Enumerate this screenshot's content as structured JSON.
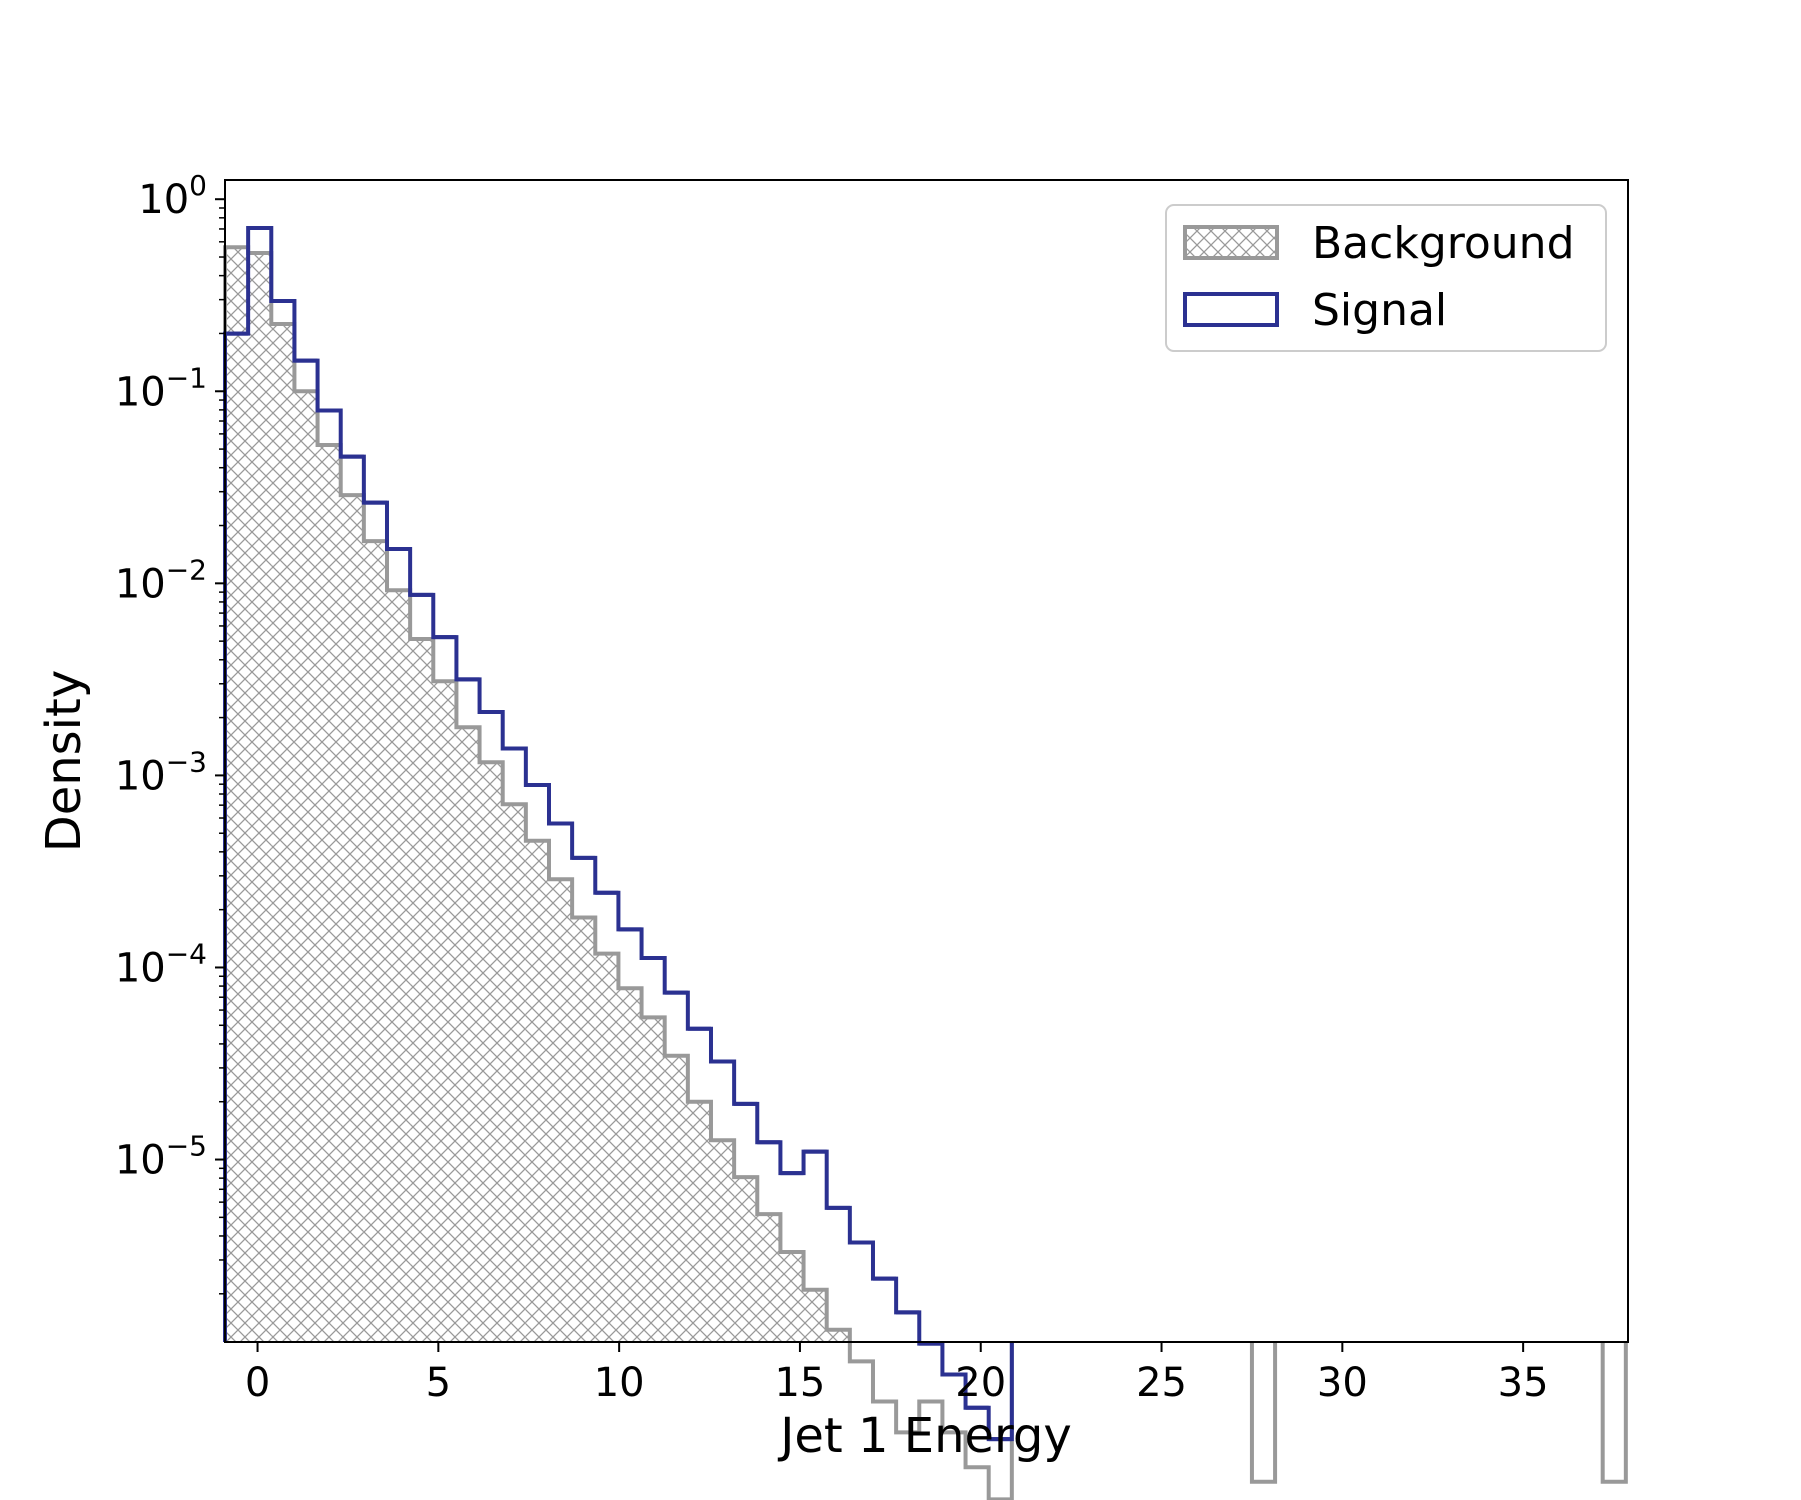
{
  "chart_data": {
    "type": "histogram",
    "xlabel": "Jet 1 Energy",
    "ylabel": "Density",
    "xlim": [
      -0.9,
      37.9
    ],
    "ylim_log10": [
      -5.95,
      0.1
    ],
    "y_scale": "log",
    "bin_width": 0.64,
    "x_ticks": [
      0,
      5,
      10,
      15,
      20,
      25,
      30,
      35
    ],
    "x_tick_labels": [
      "0",
      "5",
      "10",
      "15",
      "20",
      "25",
      "30",
      "35"
    ],
    "y_ticks_log10": [
      0,
      -1,
      -2,
      -3,
      -4,
      -5
    ],
    "y_tick_bases": [
      "10",
      "10",
      "10",
      "10",
      "10",
      "10"
    ],
    "y_tick_exponents": [
      "0",
      "−1",
      "−2",
      "−3",
      "−4",
      "−5"
    ],
    "legend_position": "top-right",
    "series": [
      {
        "name": "Background",
        "style": "hatched-fill",
        "color": "#999999",
        "bins": [
          [
            -0.9,
            0.5625
          ],
          [
            -0.26,
            0.5248
          ],
          [
            0.38,
            0.2239
          ],
          [
            1.02,
            0.1
          ],
          [
            1.66,
            0.0525
          ],
          [
            2.3,
            0.0288
          ],
          [
            2.94,
            0.0166
          ],
          [
            3.58,
            0.0092
          ],
          [
            4.22,
            0.00513
          ],
          [
            4.86,
            0.00309
          ],
          [
            5.5,
            0.00178
          ],
          [
            6.14,
            0.00117
          ],
          [
            6.78,
            0.000708
          ],
          [
            7.42,
            0.000457
          ],
          [
            8.06,
            0.000288
          ],
          [
            8.7,
            0.000182
          ],
          [
            9.34,
            0.000118
          ],
          [
            9.98,
            7.8e-05
          ],
          [
            10.62,
            5.5e-05
          ],
          [
            11.26,
            3.47e-05
          ],
          [
            11.9,
            2e-05
          ],
          [
            12.54,
            1.26e-05
          ],
          [
            13.18,
            8.1e-06
          ],
          [
            13.82,
            5.2e-06
          ],
          [
            14.46,
            3.3e-06
          ],
          [
            15.1,
            2.1e-06
          ],
          [
            15.74,
            1.3e-06
          ],
          [
            16.38,
            8.9e-07
          ],
          [
            17.02,
            5.5e-07
          ],
          [
            17.66,
            3.8e-07
          ],
          [
            18.3,
            5.5e-07
          ],
          [
            18.94,
            3.8e-07
          ],
          [
            19.58,
            2.5e-07
          ],
          [
            20.22,
            1.7e-07
          ],
          [
            27.5,
            2.1e-07
          ],
          [
            37.2,
            2.1e-07
          ]
        ]
      },
      {
        "name": "Signal",
        "style": "step-outline",
        "color": "#2b3191",
        "bins": [
          [
            -0.9,
            0.1995
          ],
          [
            -0.26,
            0.7079
          ],
          [
            0.38,
            0.2951
          ],
          [
            1.02,
            0.1445
          ],
          [
            1.66,
            0.0794
          ],
          [
            2.3,
            0.0457
          ],
          [
            2.94,
            0.0263
          ],
          [
            3.58,
            0.0151
          ],
          [
            4.22,
            0.00871
          ],
          [
            4.86,
            0.00525
          ],
          [
            5.5,
            0.00316
          ],
          [
            6.14,
            0.00214
          ],
          [
            6.78,
            0.00138
          ],
          [
            7.42,
            0.000891
          ],
          [
            8.06,
            0.000562
          ],
          [
            8.7,
            0.000372
          ],
          [
            9.34,
            0.000245
          ],
          [
            9.98,
            0.000158
          ],
          [
            10.62,
            0.000112
          ],
          [
            11.26,
            7.4e-05
          ],
          [
            11.9,
            4.8e-05
          ],
          [
            12.54,
            3.24e-05
          ],
          [
            13.18,
            1.95e-05
          ],
          [
            13.82,
            1.23e-05
          ],
          [
            14.46,
            8.5e-06
          ],
          [
            15.1,
            1.1e-05
          ],
          [
            15.74,
            5.6e-06
          ],
          [
            16.38,
            3.7e-06
          ],
          [
            17.02,
            2.4e-06
          ],
          [
            17.66,
            1.6e-06
          ],
          [
            18.3,
            1.1e-06
          ],
          [
            18.94,
            7.6e-07
          ],
          [
            19.58,
            5.1e-07
          ],
          [
            20.22,
            3.5e-07
          ]
        ]
      }
    ]
  }
}
